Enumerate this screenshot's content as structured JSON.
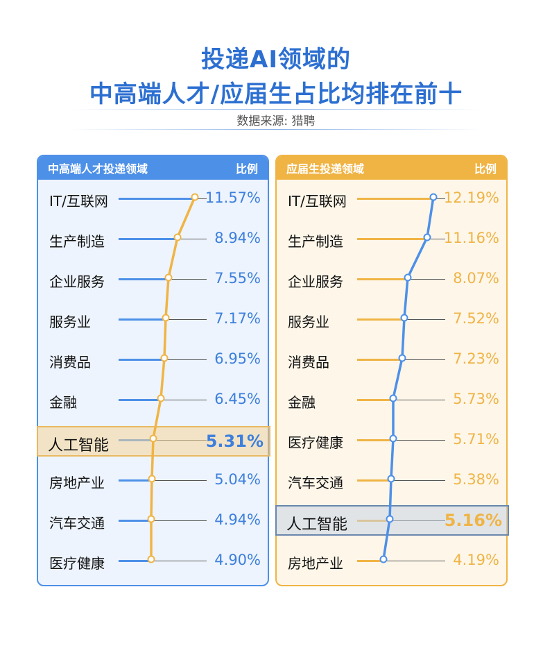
{
  "title_line1": "投递AI领域的",
  "title_line2": "中高端人才/应届生占比均排在前十",
  "source": "数据来源: 猎聘",
  "colors": {
    "blue": "#4d90e8",
    "orange": "#f0b445"
  },
  "chart_data": [
    {
      "type": "bar",
      "header_category": "中高端人才投递领域",
      "header_value": "比例",
      "categories": [
        "IT/互联网",
        "生产制造",
        "企业服务",
        "服务业",
        "消费品",
        "金融",
        "人工智能",
        "房地产业",
        "汽车交通",
        "医疗健康"
      ],
      "values": [
        11.57,
        8.94,
        7.55,
        7.17,
        6.95,
        6.45,
        5.31,
        5.04,
        4.94,
        4.9
      ],
      "labels": [
        "11.57%",
        "8.94%",
        "7.55%",
        "7.17%",
        "6.95%",
        "6.45%",
        "5.31%",
        "5.04%",
        "4.94%",
        "4.90%"
      ],
      "highlight_index": 6,
      "bar_color": "#4d90e8",
      "line_color": "#f0b445"
    },
    {
      "type": "bar",
      "header_category": "应届生投递领域",
      "header_value": "比例",
      "categories": [
        "IT/互联网",
        "生产制造",
        "企业服务",
        "服务业",
        "消费品",
        "金融",
        "医疗健康",
        "汽车交通",
        "人工智能",
        "房地产业"
      ],
      "values": [
        12.19,
        11.16,
        8.07,
        7.52,
        7.23,
        5.73,
        5.71,
        5.38,
        5.16,
        4.19
      ],
      "labels": [
        "12.19%",
        "11.16%",
        "8.07%",
        "7.52%",
        "7.23%",
        "5.73%",
        "5.71%",
        "5.38%",
        "5.16%",
        "4.19%"
      ],
      "highlight_index": 8,
      "bar_color": "#f0b445",
      "line_color": "#4d90e8"
    }
  ]
}
